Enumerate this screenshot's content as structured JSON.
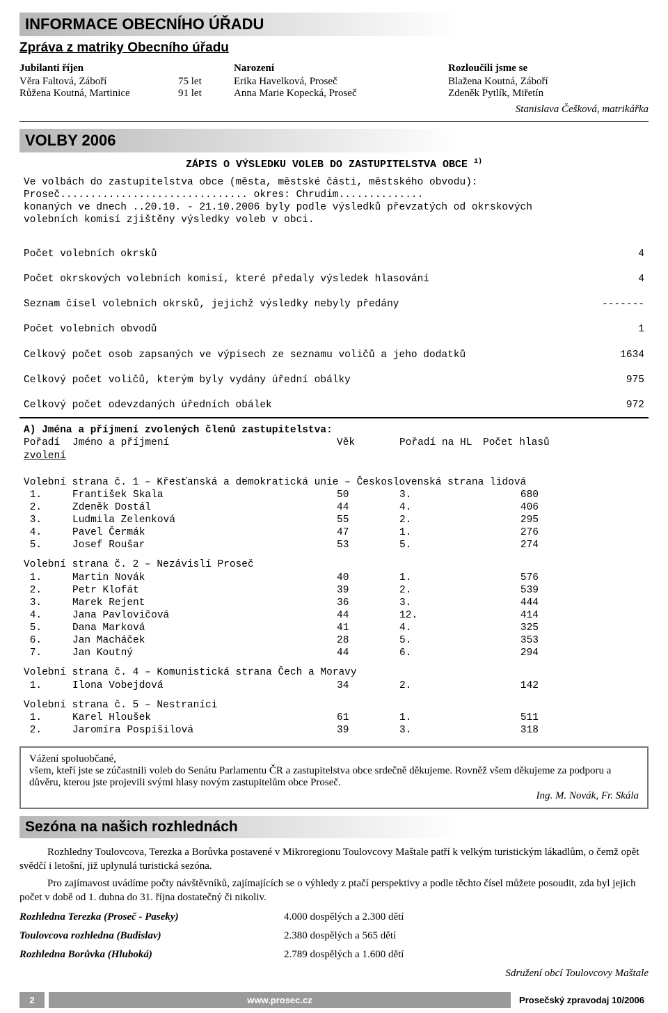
{
  "header": {
    "title": "INFORMACE OBECNÍHO ÚŘADU"
  },
  "matrika": {
    "subhead": "Zpráva z matriky Obecního úřadu",
    "col1_title": "Jubilanti říjen",
    "jubilanti": [
      {
        "name": "Věra Faltová, Záboří",
        "age": "75 let"
      },
      {
        "name": "Růžena Koutná, Martinice",
        "age": "91 let"
      }
    ],
    "col2_title": "Narození",
    "narozeni": [
      "Erika Havelková, Proseč",
      "Anna Marie Kopecká, Proseč"
    ],
    "col3_title": "Rozloučili jsme se",
    "rozloucili": [
      "Blažena Koutná, Záboří",
      "Zdeněk Pytlík, Miřetín"
    ],
    "signature": "Stanislava Češková, matrikářka"
  },
  "volby": {
    "title": "VOLBY 2006",
    "zapis_title": "ZÁPIS O VÝSLEDKU VOLEB DO ZASTUPITELSTVA OBCE",
    "intro_l1": "Ve volbách do zastupitelstva obce (města, městské části, městského obvodu):",
    "intro_l2_a": "Proseč",
    "intro_l2_b": " okres: ",
    "intro_l2_c": "Chrudim",
    "intro_l3_a": "konaných ve dnech ..",
    "intro_l3_b": "20.10. - 21.10.2006",
    "intro_l3_c": " byly podle výsledků převzatých od okrskových",
    "intro_l4": "volebních komisí zjištěny výsledky voleb v obci.",
    "stats": [
      {
        "label": "Počet volebních okrsků",
        "val": "4"
      },
      {
        "label": "Počet okrskových volebních komisí, které předaly výsledek hlasování",
        "val": "4"
      },
      {
        "label": "Seznam čísel volebních okrsků, jejichž výsledky nebyly předány",
        "val": "-------"
      },
      {
        "label": "Počet volebních obvodů",
        "val": "1"
      },
      {
        "label": "Celkový počet osob zapsaných ve výpisech ze seznamu voličů a jeho dodatků",
        "val": "1634"
      },
      {
        "label": "Celkový počet voličů, kterým byly vydány úřední obálky",
        "val": "975"
      },
      {
        "label": "Celkový počet odevzdaných úředních obálek",
        "val": "972"
      }
    ],
    "sectionA": "A) Jména a příjmení zvolených členů zastupitelstva:",
    "header_row": {
      "c1": "Pořadí",
      "c2": "Jméno a příjmení",
      "c3": "Věk",
      "c4": "Pořadí na HL",
      "c5": "Počet hlasů"
    },
    "zvoleni": "zvolení",
    "parties": [
      {
        "title": "Volební strana č. 1 – Křesťanská a demokratická unie – Československá strana lidová",
        "rows": [
          {
            "order": "1.",
            "name": "František Skala",
            "age": "50",
            "hl": "3.",
            "votes": "680"
          },
          {
            "order": "2.",
            "name": "Zdeněk Dostál",
            "age": "44",
            "hl": "4.",
            "votes": "406"
          },
          {
            "order": "3.",
            "name": "Ludmila Zelenková",
            "age": "55",
            "hl": "2.",
            "votes": "295"
          },
          {
            "order": "4.",
            "name": "Pavel Čermák",
            "age": "47",
            "hl": "1.",
            "votes": "276"
          },
          {
            "order": "5.",
            "name": "Josef Roušar",
            "age": "53",
            "hl": "5.",
            "votes": "274"
          }
        ]
      },
      {
        "title": "Volební strana č. 2 – Nezávislí Proseč",
        "rows": [
          {
            "order": "1.",
            "name": "Martin Novák",
            "age": "40",
            "hl": "1.",
            "votes": "576"
          },
          {
            "order": "2.",
            "name": "Petr Klofát",
            "age": "39",
            "hl": "2.",
            "votes": "539"
          },
          {
            "order": "3.",
            "name": "Marek Rejent",
            "age": "36",
            "hl": "3.",
            "votes": "444"
          },
          {
            "order": "4.",
            "name": "Jana Pavlovičová",
            "age": "44",
            "hl": "12.",
            "votes": "414"
          },
          {
            "order": "5.",
            "name": "Dana Marková",
            "age": "41",
            "hl": "4.",
            "votes": "325"
          },
          {
            "order": "6.",
            "name": "Jan Macháček",
            "age": "28",
            "hl": "5.",
            "votes": "353"
          },
          {
            "order": "7.",
            "name": "Jan Koutný",
            "age": "44",
            "hl": "6.",
            "votes": "294"
          }
        ]
      },
      {
        "title": "Volební strana č. 4 – Komunistická strana Čech a Moravy",
        "rows": [
          {
            "order": "1.",
            "name": "Ilona Vobejdová",
            "age": "34",
            "hl": "2.",
            "votes": "142"
          }
        ]
      },
      {
        "title": "Volební strana č. 5 – Nestraníci",
        "rows": [
          {
            "order": "1.",
            "name": "Karel Hloušek",
            "age": "61",
            "hl": "1.",
            "votes": "511"
          },
          {
            "order": "2.",
            "name": "Jaromíra Pospíšilová",
            "age": "39",
            "hl": "3.",
            "votes": "318"
          }
        ]
      }
    ]
  },
  "thanks": {
    "text": "Vážení spoluobčané,\nvšem, kteří jste se zúčastnili voleb do Senátu Parlamentu ČR a zastupitelstva obce srdečně děkujeme. Rovněž všem děkujeme za podporu a důvěru, kterou jste projevili svými hlasy novým zastupitelům obce Proseč.",
    "sign": "Ing. M. Novák, Fr. Skála"
  },
  "rozhledny": {
    "title": "Sezóna na našich rozhlednách",
    "p1": "Rozhledny Toulovcova, Terezka a Borůvka postavené v Mikroregionu Toulovcovy Maštale patří k velkým turistickým lákadlům, o čemž opět svědčí i letošní, již uplynulá turistická sezóna.",
    "p2": "Pro zajímavost uvádíme počty návštěvníků, zajímajících se o výhledy z ptačí perspektivy a  podle těchto čísel můžete posoudit,  zda byl jejich počet v době od 1. dubna do 31. října dostatečný či nikoliv.",
    "visits": [
      {
        "label": "Rozhledna Terezka (Proseč - Paseky)",
        "val": "4.000 dospělých a  2.300 dětí"
      },
      {
        "label": "Toulovcova rozhledna (Budislav)",
        "val": "2.380 dospělých a 565 dětí"
      },
      {
        "label": "Rozhledna Borůvka (Hluboká)",
        "val": "2.789 dospělých a 1.600 dětí"
      }
    ],
    "assoc": "Sdružení obcí Toulovcovy Maštale"
  },
  "footer": {
    "page": "2",
    "site": "www.prosec.cz",
    "issue": "Prosečský zpravodaj 10/2006"
  },
  "colors": {
    "grad_from": "#b8b8b8",
    "grad_to": "#ffffff",
    "footer_bg": "#9a9a9a",
    "text": "#000000"
  }
}
